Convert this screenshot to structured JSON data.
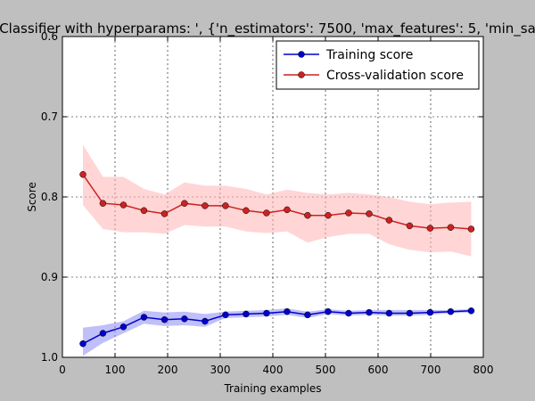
{
  "chart_data": {
    "type": "line",
    "title": "Classifier with hyperparams: ', {'n_estimators': 7500, 'max_features': 5, 'min_sa",
    "xlabel": "Training examples",
    "ylabel": "Score",
    "xlim": [
      0,
      800
    ],
    "ylim": [
      1.0,
      0.6
    ],
    "y_inverted": true,
    "xticks": [
      0,
      100,
      200,
      300,
      400,
      500,
      600,
      700,
      800
    ],
    "xtick_labels": [
      "0",
      "100",
      "200",
      "300",
      "400",
      "500",
      "600",
      "700",
      "800"
    ],
    "yticks": [
      0.6,
      0.7,
      0.8,
      0.9,
      1.0
    ],
    "ytick_labels": [
      "0.6",
      "0.7",
      "0.8",
      "0.9",
      "1.0"
    ],
    "grid": true,
    "legend_position": "top-right",
    "x": [
      39,
      77,
      116,
      155,
      194,
      232,
      271,
      310,
      349,
      388,
      427,
      466,
      505,
      544,
      583,
      621,
      660,
      699,
      738,
      777
    ],
    "series": [
      {
        "name": "Training score",
        "color": "#0000cc",
        "band_color": "#8a8af5",
        "values": [
          0.983,
          0.97,
          0.962,
          0.95,
          0.953,
          0.952,
          0.955,
          0.947,
          0.946,
          0.945,
          0.943,
          0.947,
          0.943,
          0.945,
          0.944,
          0.945,
          0.945,
          0.944,
          0.943,
          0.942
        ],
        "band_lower": [
          0.963,
          0.96,
          0.955,
          0.942,
          0.944,
          0.943,
          0.946,
          0.943,
          0.942,
          0.941,
          0.939,
          0.943,
          0.94,
          0.942,
          0.941,
          0.941,
          0.941,
          0.941,
          0.941,
          0.94
        ],
        "band_upper": [
          0.998,
          0.982,
          0.97,
          0.958,
          0.961,
          0.96,
          0.962,
          0.951,
          0.95,
          0.949,
          0.947,
          0.951,
          0.946,
          0.948,
          0.947,
          0.948,
          0.948,
          0.947,
          0.945,
          0.944
        ]
      },
      {
        "name": "Cross-validation score",
        "color": "#cc2222",
        "band_color": "#ffb3b3",
        "values": [
          0.772,
          0.808,
          0.81,
          0.817,
          0.821,
          0.808,
          0.811,
          0.811,
          0.817,
          0.82,
          0.816,
          0.823,
          0.823,
          0.82,
          0.821,
          0.829,
          0.836,
          0.839,
          0.838,
          0.84
        ],
        "band_lower": [
          0.735,
          0.775,
          0.775,
          0.79,
          0.797,
          0.782,
          0.786,
          0.786,
          0.79,
          0.797,
          0.791,
          0.795,
          0.797,
          0.795,
          0.797,
          0.8,
          0.806,
          0.809,
          0.807,
          0.806
        ],
        "band_upper": [
          0.81,
          0.84,
          0.844,
          0.844,
          0.846,
          0.835,
          0.837,
          0.837,
          0.843,
          0.845,
          0.843,
          0.857,
          0.85,
          0.846,
          0.846,
          0.859,
          0.866,
          0.869,
          0.868,
          0.874
        ]
      }
    ]
  }
}
